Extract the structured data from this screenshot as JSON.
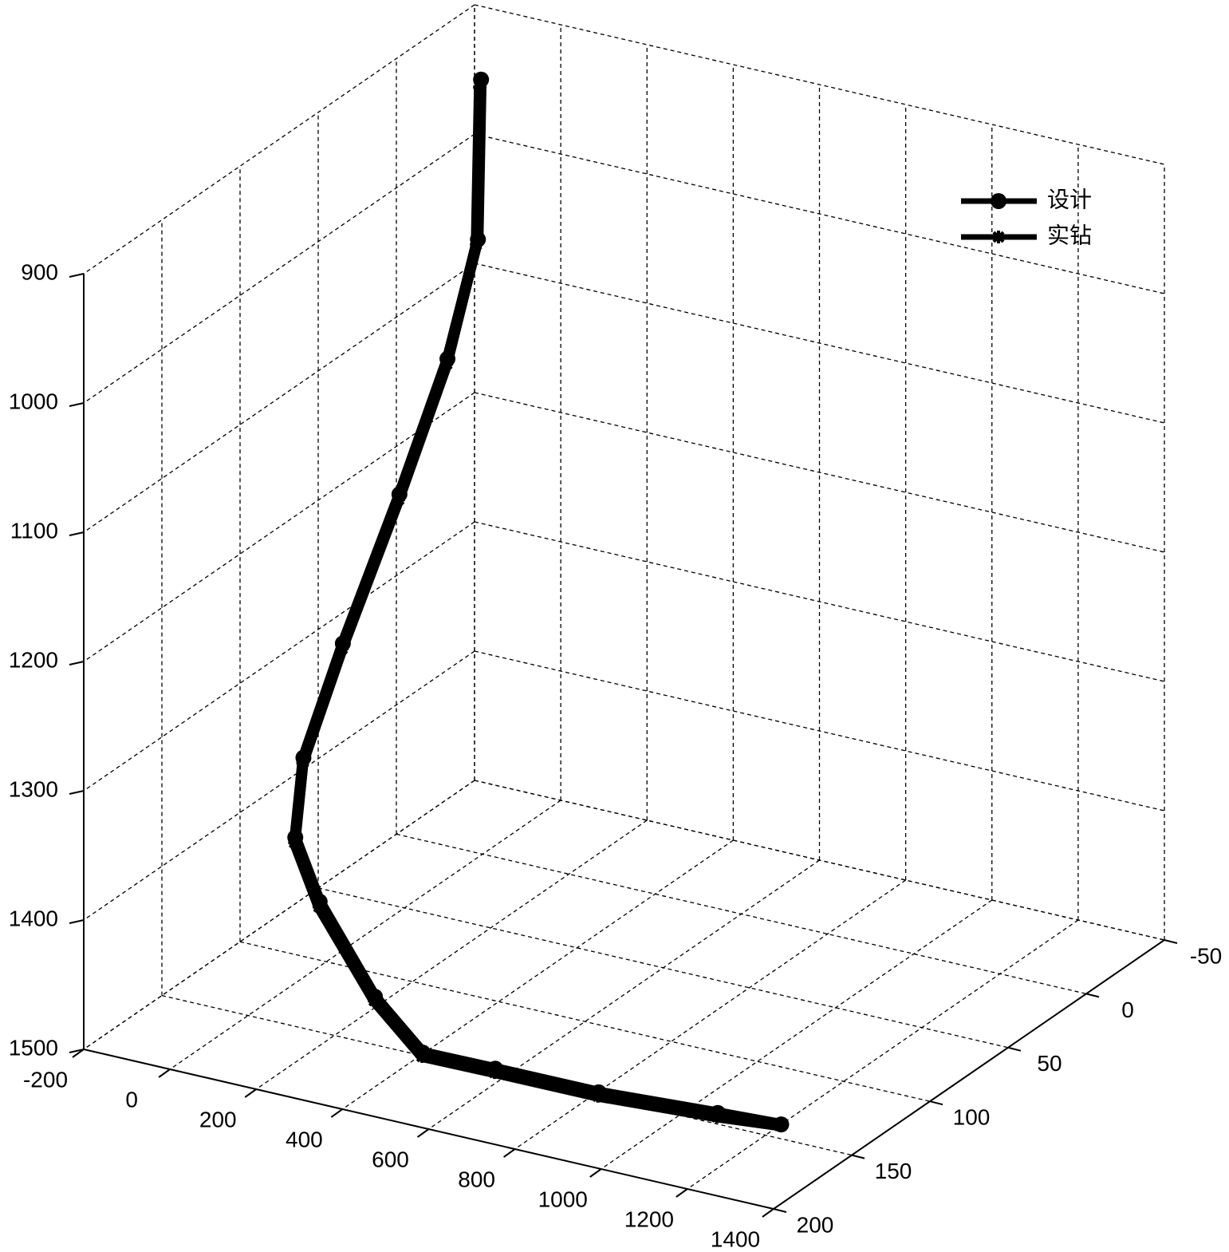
{
  "chart_data": {
    "type": "line3d",
    "xlim": [
      -200,
      1400
    ],
    "xticks": [
      -200,
      0,
      200,
      400,
      600,
      800,
      1000,
      1200,
      1400
    ],
    "ylim": [
      -50,
      200
    ],
    "yticks": [
      -50,
      0,
      50,
      100,
      150,
      200
    ],
    "zlim": [
      900,
      1500
    ],
    "zticks": [
      900,
      1000,
      1100,
      1200,
      1300,
      1400,
      1500
    ],
    "zdir": "reverse",
    "grid": true,
    "legend": "upper right",
    "series": [
      {
        "name": "设计",
        "color": "#000000",
        "marker": "circle",
        "x": [
          0,
          0,
          20,
          50,
          100,
          150,
          200,
          300,
          450,
          550,
          700,
          900,
          1100,
          1200
        ],
        "y": [
          1,
          3,
          28,
          67,
          117,
          156,
          175,
          187,
          193,
          190,
          185,
          174,
          153,
          140
        ],
        "z": [
          900,
          1022,
          1092,
          1162,
          1232,
          1284,
          1326,
          1358,
          1415,
          1453,
          1458,
          1470,
          1488,
          1500
        ]
      },
      {
        "name": "实钻",
        "color": "#000000",
        "marker": "star",
        "x": [
          0,
          0,
          22,
          52,
          102,
          152,
          202,
          302,
          452,
          552,
          702,
          902,
          1102,
          1200
        ],
        "y": [
          2,
          4,
          29,
          68,
          118,
          157,
          176,
          188,
          194,
          191,
          186,
          175,
          154,
          141
        ],
        "z": [
          905,
          1025,
          1095,
          1165,
          1235,
          1287,
          1329,
          1361,
          1417,
          1455,
          1460,
          1472,
          1490,
          1500
        ]
      }
    ]
  }
}
